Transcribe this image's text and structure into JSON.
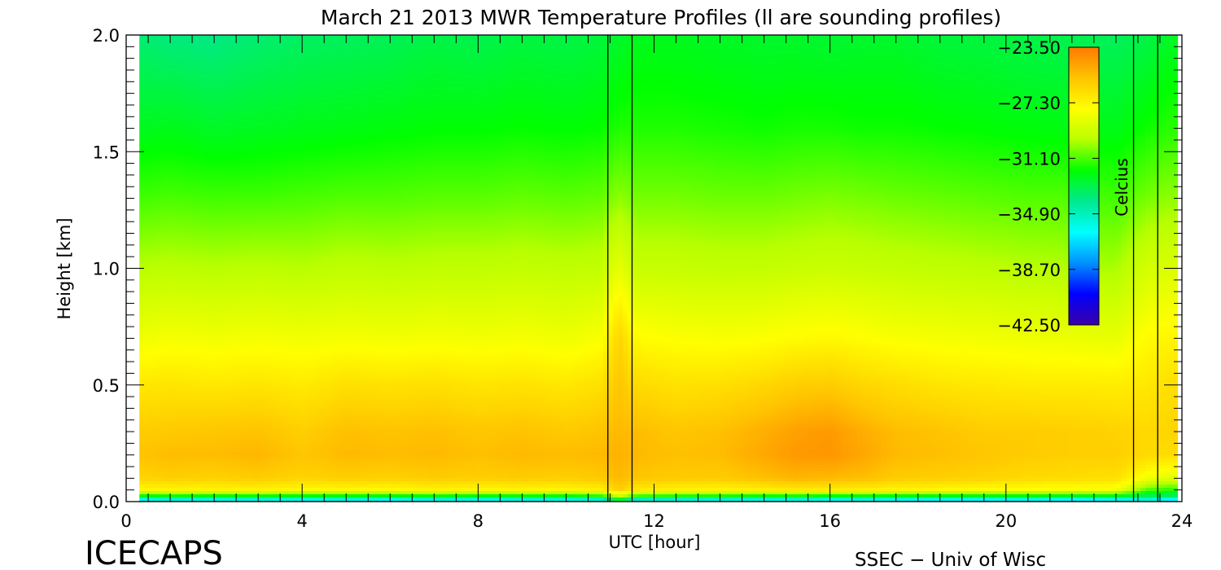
{
  "chart_data": {
    "type": "heatmap",
    "title": "March 21 2013 MWR Temperature Profiles (ll are sounding profiles)",
    "xlabel": "UTC [hour]",
    "ylabel": "Height [km]",
    "xlim": [
      0,
      24
    ],
    "ylim": [
      0.0,
      2.0
    ],
    "x_ticks": [
      "0",
      "4",
      "8",
      "12",
      "16",
      "20",
      "24"
    ],
    "y_ticks": [
      "0.0",
      "0.5",
      "1.0",
      "1.5",
      "2.0"
    ],
    "colorbar": {
      "label": "Celcius",
      "ticks": [
        "−23.50",
        "−27.30",
        "−31.10",
        "−34.90",
        "−38.70",
        "−42.50"
      ],
      "range": [
        -42.5,
        -23.5
      ],
      "colors": [
        "#3a00a8",
        "#0000ff",
        "#0090ff",
        "#00ffff",
        "#00e890",
        "#00ff00",
        "#b8ff00",
        "#ffff00",
        "#ffc400",
        "#ff7a00"
      ]
    },
    "data_start_hour": 0.3,
    "data_end_hour": 23.9,
    "sounding_times": [
      10.95,
      11.5,
      22.9,
      23.45
    ],
    "series": [
      {
        "hours": [
          0.3,
          1.0,
          2.0,
          3.0,
          4.0,
          5.0,
          6.0,
          7.0,
          8.0,
          9.0,
          10.0,
          10.8,
          11.2,
          11.6,
          12.5,
          13.5,
          14.5,
          15.2,
          16.0,
          16.8,
          17.5,
          18.5,
          19.5,
          20.5,
          21.5,
          22.5,
          23.2,
          23.7
        ]
      }
    ],
    "heights_km": [
      0.0,
      0.02,
      0.05,
      0.1,
      0.2,
      0.3,
      0.5,
      0.7,
      1.0,
      1.3,
      1.6,
      2.0
    ],
    "temperature_c": [
      [
        -38.5,
        -33.0,
        -27.5,
        -26.2,
        -25.6,
        -25.9,
        -26.9,
        -28.2,
        -29.8,
        -31.2,
        -32.4,
        -33.6
      ],
      [
        -38.0,
        -32.5,
        -27.4,
        -26.0,
        -25.4,
        -25.8,
        -26.8,
        -28.0,
        -29.7,
        -31.1,
        -32.3,
        -33.8
      ],
      [
        -38.3,
        -32.8,
        -27.4,
        -26.1,
        -25.4,
        -25.7,
        -26.9,
        -28.1,
        -29.8,
        -31.2,
        -32.5,
        -33.9
      ],
      [
        -38.1,
        -32.6,
        -27.3,
        -25.9,
        -25.2,
        -25.6,
        -26.8,
        -28.0,
        -29.7,
        -31.2,
        -32.4,
        -33.6
      ],
      [
        -38.4,
        -32.9,
        -27.6,
        -26.2,
        -25.7,
        -26.0,
        -27.0,
        -28.1,
        -29.8,
        -31.1,
        -32.3,
        -33.4
      ],
      [
        -38.2,
        -32.7,
        -27.5,
        -26.0,
        -25.3,
        -25.5,
        -26.6,
        -28.0,
        -29.6,
        -31.0,
        -32.2,
        -33.3
      ],
      [
        -38.5,
        -32.9,
        -27.6,
        -26.1,
        -25.4,
        -25.6,
        -26.7,
        -28.1,
        -29.7,
        -31.0,
        -32.1,
        -33.2
      ],
      [
        -38.0,
        -32.6,
        -27.3,
        -25.9,
        -25.3,
        -25.5,
        -26.6,
        -28.0,
        -29.6,
        -30.9,
        -32.0,
        -33.0
      ],
      [
        -38.3,
        -32.8,
        -27.5,
        -26.0,
        -25.5,
        -25.7,
        -26.8,
        -28.1,
        -29.6,
        -30.9,
        -32.0,
        -33.1
      ],
      [
        -38.1,
        -32.6,
        -27.4,
        -25.9,
        -25.3,
        -25.6,
        -26.7,
        -28.0,
        -29.5,
        -30.8,
        -31.9,
        -32.9
      ],
      [
        -38.2,
        -32.7,
        -27.5,
        -26.0,
        -25.4,
        -25.8,
        -26.9,
        -28.2,
        -29.6,
        -30.9,
        -32.0,
        -33.0
      ],
      [
        -37.8,
        -32.2,
        -27.2,
        -25.8,
        -25.3,
        -25.6,
        -26.6,
        -27.9,
        -29.5,
        -30.8,
        -31.9,
        -32.8
      ],
      [
        -35.0,
        -29.5,
        -26.0,
        -25.3,
        -25.1,
        -25.3,
        -25.7,
        -26.2,
        -28.4,
        -30.3,
        -31.6,
        -32.6
      ],
      [
        -37.5,
        -32.0,
        -27.0,
        -25.7,
        -25.3,
        -25.4,
        -26.4,
        -27.6,
        -29.4,
        -30.6,
        -31.6,
        -32.4
      ],
      [
        -37.9,
        -32.3,
        -27.3,
        -25.9,
        -25.5,
        -25.7,
        -26.7,
        -27.8,
        -29.4,
        -30.6,
        -31.6,
        -32.4
      ],
      [
        -38.0,
        -32.4,
        -27.4,
        -25.9,
        -25.4,
        -25.5,
        -26.6,
        -27.9,
        -29.5,
        -30.7,
        -31.7,
        -32.5
      ],
      [
        -38.2,
        -32.7,
        -27.2,
        -25.5,
        -24.8,
        -25.0,
        -26.3,
        -27.8,
        -29.5,
        -30.7,
        -31.8,
        -32.6
      ],
      [
        -38.1,
        -32.5,
        -27.0,
        -25.2,
        -24.4,
        -24.6,
        -26.0,
        -27.6,
        -29.4,
        -30.6,
        -31.7,
        -32.6
      ],
      [
        -38.3,
        -32.8,
        -27.1,
        -25.3,
        -24.3,
        -24.4,
        -25.9,
        -27.5,
        -29.3,
        -30.5,
        -31.7,
        -32.7
      ],
      [
        -38.2,
        -32.6,
        -27.2,
        -25.5,
        -24.8,
        -25.0,
        -26.3,
        -27.7,
        -29.4,
        -30.6,
        -31.8,
        -32.6
      ],
      [
        -38.4,
        -32.9,
        -27.4,
        -25.9,
        -25.3,
        -25.4,
        -26.5,
        -27.9,
        -29.5,
        -30.7,
        -31.8,
        -32.6
      ],
      [
        -38.5,
        -33.0,
        -27.5,
        -26.0,
        -25.5,
        -25.6,
        -26.8,
        -28.0,
        -29.6,
        -30.8,
        -31.9,
        -32.8
      ],
      [
        -38.6,
        -33.1,
        -27.7,
        -26.2,
        -25.7,
        -25.9,
        -26.9,
        -28.1,
        -29.7,
        -30.9,
        -32.0,
        -32.9
      ],
      [
        -38.4,
        -32.9,
        -27.8,
        -26.4,
        -25.9,
        -25.9,
        -27.0,
        -28.2,
        -29.8,
        -31.0,
        -32.1,
        -33.0
      ],
      [
        -38.7,
        -33.2,
        -27.9,
        -26.5,
        -26.0,
        -26.0,
        -27.0,
        -28.3,
        -29.9,
        -31.0,
        -32.2,
        -33.1
      ],
      [
        -38.5,
        -33.0,
        -28.0,
        -26.6,
        -26.0,
        -26.1,
        -27.1,
        -28.4,
        -30.0,
        -31.2,
        -32.3,
        -33.3
      ],
      [
        -37.0,
        -33.5,
        -31.0,
        -28.0,
        -26.4,
        -26.4,
        -26.9,
        -27.6,
        -29.0,
        -30.6,
        -31.8,
        -33.0
      ],
      [
        -38.8,
        -33.6,
        -31.5,
        -28.6,
        -26.5,
        -26.2,
        -26.6,
        -27.4,
        -28.8,
        -30.3,
        -31.5,
        -32.5
      ]
    ]
  },
  "footer": {
    "logo_text": "ICECAPS",
    "credit_text": "SSEC − Univ of Wisc"
  }
}
